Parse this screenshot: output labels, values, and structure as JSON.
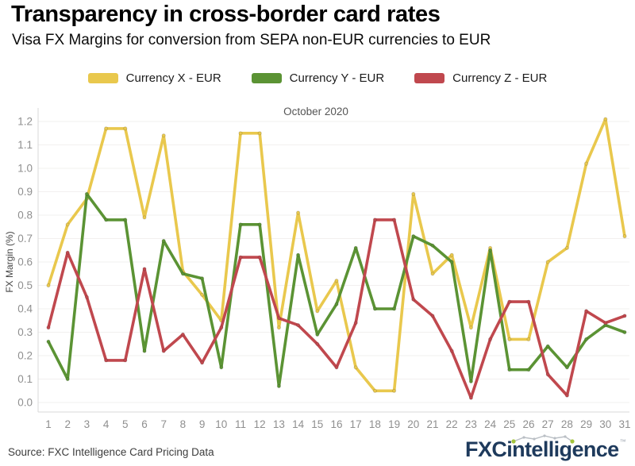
{
  "header": {
    "title": "Transparency in cross-border card rates",
    "subtitle": "Visa FX Margins for conversion from SEPA non-EUR currencies to EUR"
  },
  "legend": [
    {
      "label": "Currency X - EUR",
      "color": "#E9C84D"
    },
    {
      "label": "Currency Y - EUR",
      "color": "#5B9334"
    },
    {
      "label": "Currency Z - EUR",
      "color": "#C0484E"
    }
  ],
  "chart_data": {
    "type": "line",
    "title": "October 2020",
    "xlabel": "",
    "ylabel": "FX Margin (%)",
    "ylim": [
      0.0,
      1.2
    ],
    "ytick_step": 0.1,
    "grid": true,
    "legend_position": "top",
    "x": [
      1,
      2,
      3,
      4,
      5,
      6,
      7,
      8,
      9,
      10,
      11,
      12,
      13,
      14,
      15,
      16,
      17,
      18,
      19,
      20,
      21,
      22,
      23,
      24,
      25,
      26,
      27,
      28,
      29,
      30,
      31
    ],
    "series": [
      {
        "name": "Currency X - EUR",
        "color": "#E9C84D",
        "values": [
          0.5,
          0.76,
          0.87,
          1.17,
          1.17,
          0.79,
          1.14,
          0.56,
          0.46,
          0.35,
          1.15,
          1.15,
          0.32,
          0.81,
          0.39,
          0.52,
          0.15,
          0.05,
          0.05,
          0.89,
          0.55,
          0.63,
          0.32,
          0.66,
          0.27,
          0.27,
          0.6,
          0.66,
          1.02,
          1.21,
          0.71
        ]
      },
      {
        "name": "Currency Y - EUR",
        "color": "#5B9334",
        "values": [
          0.26,
          0.1,
          0.89,
          0.78,
          0.78,
          0.22,
          0.69,
          0.55,
          0.53,
          0.15,
          0.76,
          0.76,
          0.07,
          0.63,
          0.29,
          0.42,
          0.66,
          0.4,
          0.4,
          0.71,
          0.67,
          0.6,
          0.09,
          0.65,
          0.14,
          0.14,
          0.24,
          0.15,
          0.27,
          0.33,
          0.3
        ]
      },
      {
        "name": "Currency Z - EUR",
        "color": "#C0484E",
        "values": [
          0.32,
          0.64,
          0.45,
          0.18,
          0.18,
          0.57,
          0.22,
          0.29,
          0.17,
          0.32,
          0.62,
          0.62,
          0.36,
          0.33,
          0.25,
          0.15,
          0.34,
          0.78,
          0.78,
          0.44,
          0.37,
          0.22,
          0.02,
          0.27,
          0.43,
          0.43,
          0.12,
          0.03,
          0.39,
          0.34,
          0.37
        ]
      }
    ]
  },
  "footer": {
    "source": "Source: FXC Intelligence Card Pricing Data",
    "logo": {
      "prefix": "FXC",
      "rest": "intelligence",
      "tm": "™"
    }
  }
}
